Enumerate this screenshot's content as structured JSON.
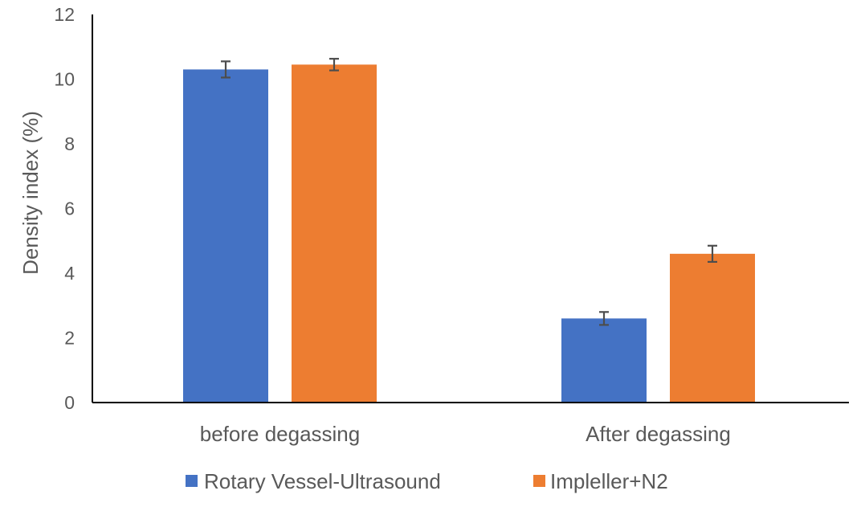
{
  "chart_data": {
    "type": "bar",
    "title": "",
    "xlabel": "",
    "ylabel": "Density index (%)",
    "ylim": [
      0,
      12
    ],
    "yticks": [
      "0",
      "2",
      "4",
      "6",
      "8",
      "10",
      "12"
    ],
    "grid": false,
    "legend_position": "bottom",
    "categories": [
      "before degassing",
      "After degassing"
    ],
    "series": [
      {
        "name": "Rotary Vessel-Ultrasound",
        "color": "#4472c4",
        "values": [
          10.3,
          2.6
        ],
        "errors": [
          0.25,
          0.2
        ]
      },
      {
        "name": "Impleller+N2",
        "color": "#ed7d31",
        "values": [
          10.45,
          4.6
        ],
        "errors": [
          0.18,
          0.25
        ]
      }
    ]
  }
}
